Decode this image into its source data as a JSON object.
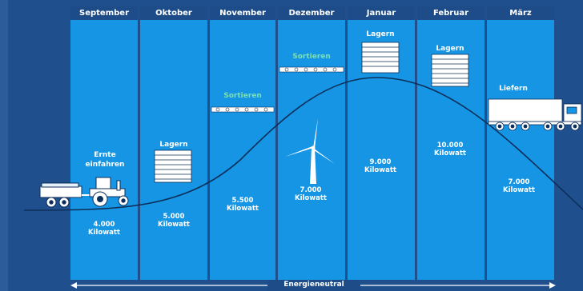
{
  "months": [
    "September",
    "Oktober",
    "November",
    "Dezember",
    "Januar",
    "Februar",
    "März"
  ],
  "stages": {
    "harvest": "Ernte\neinfahren",
    "store_oct": "Lagern",
    "sort_nov": "Sortieren",
    "sort_dec": "Sortieren",
    "store_jan": "Lagern",
    "store_feb": "Lagern",
    "deliver": "Liefern"
  },
  "energy": {
    "sep": "4.000\nKilowatt",
    "oct": "5.000\nKilowatt",
    "nov": "5.500\nKilowatt",
    "dec": "7.000\nKilowatt",
    "jan": "9.000\nKilowatt",
    "feb": "10.000\nKilowatt",
    "mar": "7.000\nKilowatt"
  },
  "bottom_label": "Energieneutral",
  "colors": {
    "background": "#1f4f8c",
    "column": "#1595e3",
    "header": "#1d4c88",
    "stage_text_green": "#7ce0b0",
    "white": "#ffffff"
  }
}
